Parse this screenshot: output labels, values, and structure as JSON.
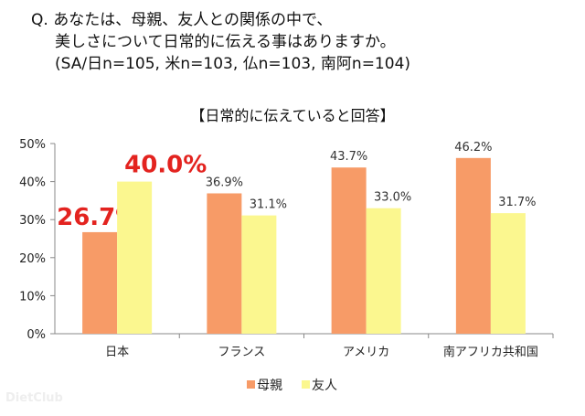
{
  "question": {
    "line1": "Q. あなたは、母親、友人との関係の中で、",
    "line2": "美しさについて日常的に伝える事はありますか。",
    "line3": "(SA/日n=105, 米n=103, 仏n=103, 南阿n=104)"
  },
  "watermark": "DietClub",
  "chart_data": {
    "type": "bar",
    "title": "【日常的に伝えていると回答】",
    "categories": [
      "日本",
      "フランス",
      "アメリカ",
      "南アフリカ共和国"
    ],
    "series": [
      {
        "name": "母親",
        "values": [
          26.7,
          36.9,
          43.7,
          46.2
        ],
        "color": "#F79B67"
      },
      {
        "name": "友人",
        "values": [
          40.0,
          31.1,
          33.0,
          31.7
        ],
        "color": "#FBF78F"
      }
    ],
    "data_labels": [
      [
        "26.7%",
        "36.9%",
        "43.7%",
        "46.2%"
      ],
      [
        "40.0%",
        "31.1%",
        "33.0%",
        "31.7%"
      ]
    ],
    "highlight_color": "#E3231F",
    "yticks": [
      "0%",
      "10%",
      "20%",
      "30%",
      "40%",
      "50%"
    ],
    "ylim": [
      0,
      50
    ],
    "legend_position": "bottom"
  }
}
